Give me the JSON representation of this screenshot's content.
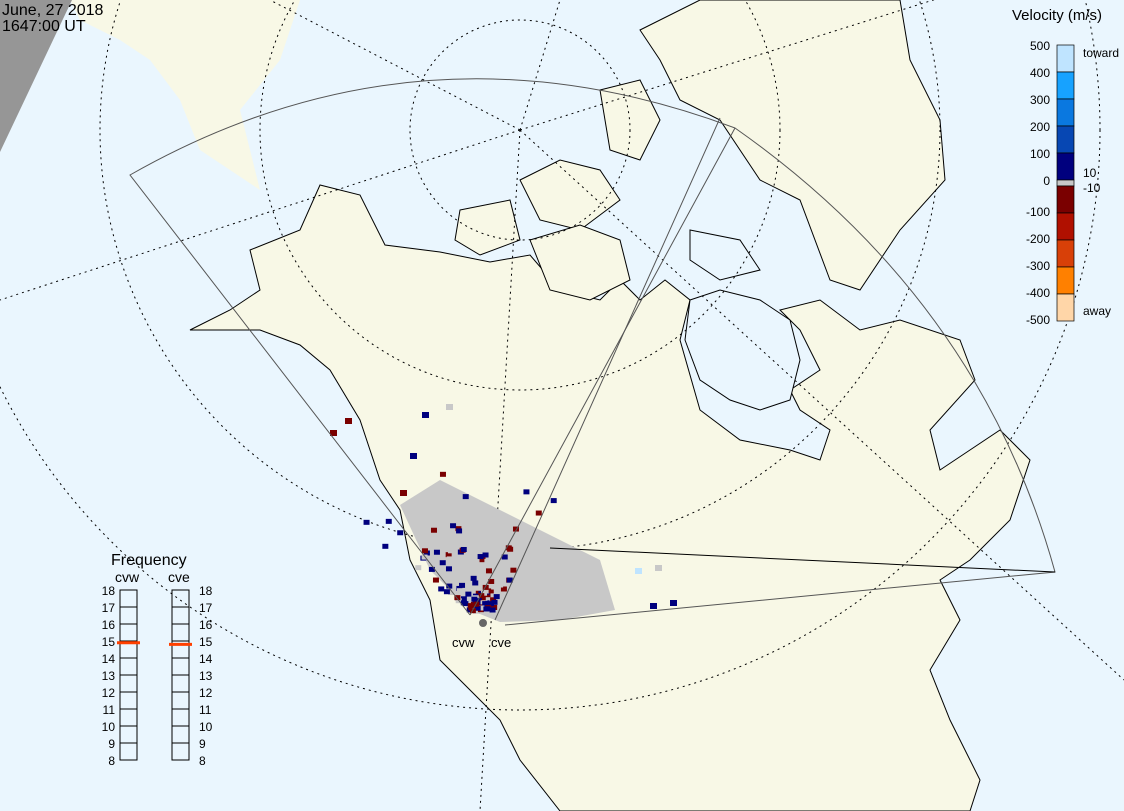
{
  "header": {
    "date": "June, 27 2018",
    "time": "1647:00 UT"
  },
  "colors": {
    "ocean": "#eaf6fe",
    "land": "#f8f8e6",
    "ground_scatter": "#c8c8c8",
    "night": "#969696",
    "frequency_marker": "#ff4000"
  },
  "velocity_scale": {
    "title": "Velocity (m/s)",
    "ticks": [
      "500",
      "400",
      "300",
      "200",
      "100",
      "0",
      "-100",
      "-200",
      "-300",
      "-400",
      "-500"
    ],
    "inner_labels": [
      "10",
      "-10"
    ],
    "toward_label": "toward",
    "away_label": "away",
    "colors": [
      "#bfe4ff",
      "#17a2ff",
      "#0a78e0",
      "#0747b3",
      "#00007e",
      "#c8c8c8",
      "#7a0000",
      "#b01000",
      "#d84008",
      "#ff8000",
      "#ffd6a8"
    ]
  },
  "radars": [
    {
      "code": "cvw",
      "frequency_mhz": 14.9
    },
    {
      "code": "cve",
      "frequency_mhz": 14.8
    }
  ],
  "frequency_panel": {
    "title": "Frequency",
    "ticks": [
      "18",
      "17",
      "16",
      "15",
      "14",
      "13",
      "12",
      "11",
      "10",
      "9",
      "8"
    ]
  }
}
